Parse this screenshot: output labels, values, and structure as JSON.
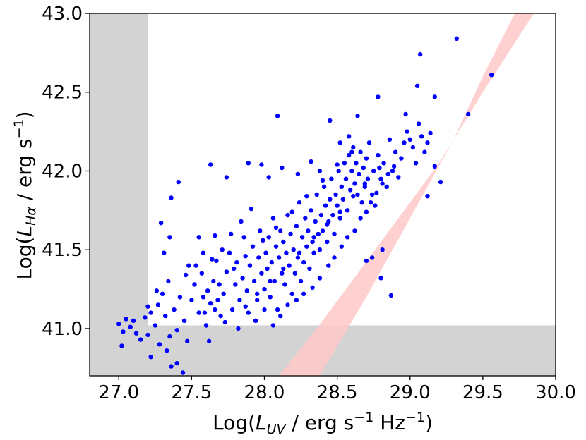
{
  "chart_data": {
    "type": "scatter",
    "title": "",
    "xlabel": {
      "base": "Log(",
      "symbol": "L",
      "sub": "UV",
      "rest": " / erg s",
      "sup1": "−1",
      "mid": " Hz",
      "sup2": "−1",
      "end": ")"
    },
    "ylabel": {
      "base": "Log(",
      "symbol": "L",
      "sub": "Hα",
      "rest": " / erg s",
      "sup1": "−1",
      "end": ")"
    },
    "xlim": [
      26.8,
      30.0
    ],
    "ylim": [
      40.7,
      43.0
    ],
    "xticks": [
      "27.0",
      "27.5",
      "28.0",
      "28.5",
      "29.0",
      "29.5",
      "30.0"
    ],
    "yticks": [
      "41.0",
      "41.5",
      "42.0",
      "42.5",
      "43.0"
    ],
    "grid": false,
    "legend": "none",
    "colors": {
      "points": "#0000ff",
      "band": "#ffc8c8",
      "excluded": "#d3d3d3"
    },
    "excluded_regions": [
      {
        "x": [
          26.8,
          27.2
        ],
        "y": [
          40.7,
          43.0
        ]
      },
      {
        "x": [
          26.8,
          30.0
        ],
        "y": [
          40.7,
          41.02
        ]
      }
    ],
    "band": {
      "lower": [
        [
          28.1,
          40.7
        ],
        [
          28.4,
          41.05
        ],
        [
          28.8,
          41.55
        ],
        [
          29.2,
          42.05
        ],
        [
          29.5,
          42.5
        ],
        [
          29.85,
          43.0
        ]
      ],
      "upper": [
        [
          28.42,
          40.7
        ],
        [
          28.62,
          41.05
        ],
        [
          28.95,
          41.55
        ],
        [
          29.3,
          42.05
        ],
        [
          29.55,
          42.5
        ],
        [
          29.85,
          43.0
        ]
      ],
      "upper_edge": [
        [
          28.38,
          40.7
        ],
        [
          28.7,
          41.2
        ],
        [
          29.0,
          41.7
        ],
        [
          29.3,
          42.2
        ],
        [
          29.5,
          42.6
        ],
        [
          29.72,
          43.0
        ]
      ]
    },
    "points": [
      [
        27.0,
        41.03
      ],
      [
        27.03,
        40.98
      ],
      [
        27.05,
        41.06
      ],
      [
        27.02,
        40.89
      ],
      [
        27.08,
        41.01
      ],
      [
        27.12,
        40.97
      ],
      [
        27.1,
        41.05
      ],
      [
        27.15,
        40.93
      ],
      [
        27.18,
        41.07
      ],
      [
        27.2,
        40.96
      ],
      [
        27.22,
        41.1
      ],
      [
        27.25,
        41.02
      ],
      [
        27.28,
        40.9
      ],
      [
        27.22,
        40.82
      ],
      [
        27.27,
        41.15
      ],
      [
        27.3,
        41.22
      ],
      [
        27.32,
        41.08
      ],
      [
        27.35,
        40.95
      ],
      [
        27.33,
        40.86
      ],
      [
        27.38,
        41.12
      ],
      [
        27.4,
        40.99
      ],
      [
        27.42,
        41.2
      ],
      [
        27.45,
        41.05
      ],
      [
        27.47,
        40.92
      ],
      [
        27.4,
        40.78
      ],
      [
        27.44,
        40.72
      ],
      [
        27.36,
        40.76
      ],
      [
        27.31,
        41.48
      ],
      [
        27.35,
        41.58
      ],
      [
        27.29,
        41.67
      ],
      [
        27.36,
        41.83
      ],
      [
        27.41,
        41.93
      ],
      [
        27.48,
        41.4
      ],
      [
        27.5,
        41.18
      ],
      [
        27.52,
        41.28
      ],
      [
        27.55,
        41.1
      ],
      [
        27.57,
        41.35
      ],
      [
        27.58,
        41.48
      ],
      [
        27.55,
        41.58
      ],
      [
        27.61,
        41.24
      ],
      [
        27.63,
        41.16
      ],
      [
        27.6,
        41.02
      ],
      [
        27.62,
        40.92
      ],
      [
        27.65,
        41.3
      ],
      [
        27.67,
        41.43
      ],
      [
        27.66,
        41.59
      ],
      [
        27.68,
        41.18
      ],
      [
        27.7,
        41.08
      ],
      [
        27.72,
        41.22
      ],
      [
        27.74,
        41.36
      ],
      [
        27.76,
        41.48
      ],
      [
        27.78,
        41.12
      ],
      [
        27.8,
        41.28
      ],
      [
        27.81,
        41.42
      ],
      [
        27.83,
        41.18
      ],
      [
        27.85,
        41.32
      ],
      [
        27.86,
        41.58
      ],
      [
        27.88,
        41.24
      ],
      [
        27.89,
        41.1
      ],
      [
        27.9,
        41.4
      ],
      [
        27.92,
        41.52
      ],
      [
        27.93,
        41.3
      ],
      [
        27.95,
        41.18
      ],
      [
        27.96,
        41.45
      ],
      [
        27.97,
        41.62
      ],
      [
        27.98,
        41.35
      ],
      [
        28.0,
        41.25
      ],
      [
        28.01,
        41.48
      ],
      [
        28.02,
        41.38
      ],
      [
        28.03,
        41.58
      ],
      [
        28.04,
        41.2
      ],
      [
        28.05,
        41.42
      ],
      [
        28.06,
        41.7
      ],
      [
        28.07,
        41.3
      ],
      [
        28.08,
        41.52
      ],
      [
        28.09,
        41.12
      ],
      [
        28.1,
        41.45
      ],
      [
        28.11,
        41.62
      ],
      [
        28.12,
        41.35
      ],
      [
        28.13,
        41.55
      ],
      [
        28.14,
        41.28
      ],
      [
        28.15,
        41.48
      ],
      [
        28.16,
        41.72
      ],
      [
        28.17,
        41.4
      ],
      [
        28.18,
        41.6
      ],
      [
        28.19,
        41.22
      ],
      [
        28.2,
        41.5
      ],
      [
        28.21,
        41.35
      ],
      [
        28.22,
        41.65
      ],
      [
        28.23,
        41.45
      ],
      [
        28.24,
        41.8
      ],
      [
        28.25,
        41.3
      ],
      [
        28.26,
        41.58
      ],
      [
        28.27,
        41.42
      ],
      [
        28.28,
        41.7
      ],
      [
        28.29,
        41.52
      ],
      [
        28.3,
        41.62
      ],
      [
        28.31,
        41.38
      ],
      [
        28.32,
        41.75
      ],
      [
        28.33,
        41.55
      ],
      [
        28.34,
        41.48
      ],
      [
        28.35,
        41.68
      ],
      [
        28.36,
        41.85
      ],
      [
        28.37,
        41.6
      ],
      [
        28.38,
        41.5
      ],
      [
        28.39,
        41.72
      ],
      [
        28.4,
        41.62
      ],
      [
        28.41,
        41.9
      ],
      [
        28.42,
        41.78
      ],
      [
        28.43,
        41.55
      ],
      [
        28.44,
        41.68
      ],
      [
        28.45,
        41.82
      ],
      [
        28.46,
        41.95
      ],
      [
        28.47,
        41.72
      ],
      [
        28.48,
        41.6
      ],
      [
        28.49,
        41.85
      ],
      [
        28.5,
        41.78
      ],
      [
        28.51,
        42.0
      ],
      [
        28.52,
        41.7
      ],
      [
        28.53,
        41.9
      ],
      [
        28.54,
        41.82
      ],
      [
        28.55,
        42.05
      ],
      [
        28.56,
        41.95
      ],
      [
        28.57,
        41.75
      ],
      [
        28.58,
        42.1
      ],
      [
        28.59,
        41.88
      ],
      [
        28.6,
        42.0
      ],
      [
        28.61,
        42.15
      ],
      [
        28.62,
        41.92
      ],
      [
        28.63,
        42.05
      ],
      [
        28.64,
        41.85
      ],
      [
        28.65,
        41.98
      ],
      [
        28.66,
        42.12
      ],
      [
        28.67,
        41.8
      ],
      [
        28.68,
        42.02
      ],
      [
        28.69,
        41.9
      ],
      [
        28.7,
        42.08
      ],
      [
        28.71,
        41.95
      ],
      [
        28.72,
        42.18
      ],
      [
        28.74,
        41.85
      ],
      [
        28.75,
        42.0
      ],
      [
        28.76,
        41.78
      ],
      [
        28.78,
        42.1
      ],
      [
        28.8,
        41.95
      ],
      [
        28.82,
        42.05
      ],
      [
        28.84,
        41.9
      ],
      [
        28.86,
        42.2
      ],
      [
        28.88,
        42.0
      ],
      [
        28.9,
        42.12
      ],
      [
        28.92,
        41.96
      ],
      [
        28.94,
        42.08
      ],
      [
        28.96,
        42.18
      ],
      [
        28.98,
        42.25
      ],
      [
        29.0,
        42.2
      ],
      [
        29.02,
        42.15
      ],
      [
        29.04,
        42.05
      ],
      [
        29.06,
        42.3
      ],
      [
        29.08,
        42.22
      ],
      [
        29.1,
        42.12
      ],
      [
        29.12,
        42.18
      ],
      [
        29.05,
        42.54
      ],
      [
        29.07,
        42.74
      ],
      [
        29.17,
        42.47
      ],
      [
        29.32,
        42.84
      ],
      [
        29.56,
        42.61
      ],
      [
        29.4,
        42.36
      ],
      [
        29.14,
        42.24
      ],
      [
        29.17,
        42.03
      ],
      [
        29.21,
        41.93
      ],
      [
        29.12,
        41.84
      ],
      [
        28.81,
        41.5
      ],
      [
        28.74,
        41.45
      ],
      [
        28.7,
        41.43
      ],
      [
        28.8,
        41.32
      ],
      [
        28.87,
        41.21
      ],
      [
        28.97,
        42.36
      ],
      [
        28.78,
        42.47
      ],
      [
        28.64,
        42.35
      ],
      [
        28.09,
        42.35
      ],
      [
        28.45,
        42.32
      ],
      [
        27.63,
        42.04
      ],
      [
        27.74,
        41.96
      ],
      [
        27.89,
        42.05
      ],
      [
        27.98,
        42.04
      ],
      [
        28.03,
        41.96
      ],
      [
        28.12,
        42.02
      ],
      [
        28.23,
        41.98
      ],
      [
        28.32,
        42.06
      ],
      [
        28.38,
        42.0
      ],
      [
        28.52,
        42.18
      ],
      [
        28.58,
        42.22
      ],
      [
        27.2,
        41.14
      ],
      [
        27.26,
        41.24
      ],
      [
        27.34,
        41.3
      ],
      [
        27.46,
        41.34
      ],
      [
        27.53,
        41.4
      ],
      [
        27.59,
        41.1
      ],
      [
        27.64,
        41.44
      ],
      [
        27.71,
        41.5
      ],
      [
        27.77,
        41.6
      ],
      [
        27.84,
        41.68
      ],
      [
        27.91,
        41.76
      ],
      [
        27.94,
        41.05
      ],
      [
        28.0,
        41.12
      ],
      [
        28.06,
        41.02
      ],
      [
        28.11,
        41.08
      ],
      [
        28.16,
        41.15
      ],
      [
        28.22,
        41.18
      ],
      [
        28.27,
        41.22
      ],
      [
        28.33,
        41.26
      ],
      [
        28.38,
        41.32
      ],
      [
        28.44,
        41.4
      ],
      [
        28.48,
        41.45
      ],
      [
        28.53,
        41.52
      ],
      [
        28.57,
        41.58
      ],
      [
        28.62,
        41.62
      ],
      [
        28.66,
        41.7
      ],
      [
        28.7,
        41.74
      ],
      [
        28.73,
        41.8
      ],
      [
        28.77,
        41.86
      ],
      [
        28.81,
        41.92
      ],
      [
        28.85,
        41.98
      ],
      [
        28.89,
        42.03
      ],
      [
        27.69,
        41.28
      ],
      [
        27.79,
        41.38
      ],
      [
        27.87,
        41.46
      ],
      [
        27.99,
        41.56
      ],
      [
        28.08,
        41.64
      ],
      [
        28.19,
        41.74
      ],
      [
        28.29,
        41.84
      ],
      [
        28.4,
        41.94
      ],
      [
        28.5,
        42.04
      ],
      [
        28.6,
        42.12
      ],
      [
        27.58,
        41.2
      ],
      [
        27.66,
        41.12
      ],
      [
        27.73,
        41.04
      ],
      [
        27.82,
        41.0
      ],
      [
        27.87,
        41.14
      ],
      [
        27.95,
        41.22
      ],
      [
        28.04,
        41.3
      ],
      [
        28.13,
        41.38
      ],
      [
        28.24,
        41.48
      ],
      [
        28.34,
        41.58
      ],
      [
        28.43,
        41.66
      ],
      [
        28.52,
        41.74
      ],
      [
        28.61,
        41.84
      ],
      [
        28.69,
        41.92
      ],
      [
        28.79,
        42.02
      ]
    ]
  }
}
